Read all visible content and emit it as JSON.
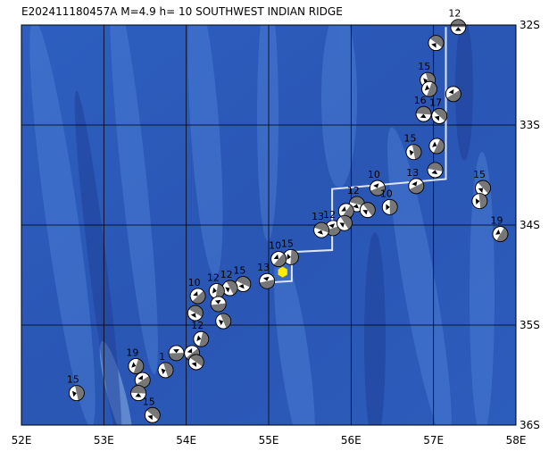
{
  "chart_data": {
    "type": "map",
    "title": "E202411180457A M=4.9 h= 10 SOUTHWEST INDIAN RIDGE",
    "xlim": [
      52,
      58
    ],
    "ylim": [
      -36,
      -32
    ],
    "xticks": [
      {
        "value": 52,
        "label": "52E"
      },
      {
        "value": 53,
        "label": "53E"
      },
      {
        "value": 54,
        "label": "54E"
      },
      {
        "value": 55,
        "label": "55E"
      },
      {
        "value": 56,
        "label": "56E"
      },
      {
        "value": 57,
        "label": "57E"
      },
      {
        "value": 58,
        "label": "58E"
      }
    ],
    "yticks": [
      {
        "value": -32,
        "label": "32S"
      },
      {
        "value": -33,
        "label": "33S"
      },
      {
        "value": -34,
        "label": "34S"
      },
      {
        "value": -35,
        "label": "35S"
      },
      {
        "value": -36,
        "label": "36S"
      }
    ],
    "grid": true,
    "epicenter": {
      "lon": 55.17,
      "lat": -34.47,
      "color": "#ffee00"
    },
    "ridge": {
      "color": "#dde6f5",
      "lon": [
        57.15,
        57.15,
        55.77,
        55.77,
        55.28,
        55.28,
        54.9
      ],
      "lat": [
        -32.02,
        -33.54,
        -33.64,
        -34.25,
        -34.27,
        -34.56,
        -34.58
      ]
    },
    "events": {
      "lon": [
        57.3,
        57.03,
        56.93,
        56.95,
        57.24,
        56.88,
        57.07,
        56.76,
        57.04,
        56.79,
        57.02,
        57.6,
        57.56,
        57.81,
        56.32,
        56.07,
        56.2,
        56.47,
        55.94,
        55.78,
        55.64,
        55.92,
        55.27,
        55.12,
        54.98,
        54.69,
        54.53,
        54.37,
        54.14,
        54.39,
        54.11,
        54.45,
        54.18,
        54.07,
        53.88,
        54.12,
        53.75,
        53.39,
        53.47,
        53.42,
        53.59,
        52.67
      ],
      "lat": [
        -32.02,
        -32.18,
        -32.55,
        -32.64,
        -32.69,
        -32.89,
        -32.91,
        -33.27,
        -33.21,
        -33.61,
        -33.45,
        -33.63,
        -33.76,
        -34.09,
        -33.63,
        -33.79,
        -33.85,
        -33.82,
        -33.86,
        -34.03,
        -34.05,
        -33.98,
        -34.32,
        -34.34,
        -34.56,
        -34.59,
        -34.63,
        -34.66,
        -34.71,
        -34.79,
        -34.88,
        -34.96,
        -35.14,
        -35.28,
        -35.28,
        -35.37,
        -35.45,
        -35.41,
        -35.55,
        -35.68,
        -35.9,
        -35.68
      ],
      "depth": [
        12,
        null,
        15,
        null,
        null,
        16,
        17,
        15,
        null,
        13,
        null,
        15,
        null,
        19,
        10,
        12,
        null,
        10,
        null,
        12,
        13,
        null,
        15,
        10,
        13,
        15,
        12,
        12,
        10,
        null,
        null,
        null,
        12,
        null,
        null,
        null,
        1,
        19,
        null,
        null,
        15,
        15
      ]
    }
  }
}
